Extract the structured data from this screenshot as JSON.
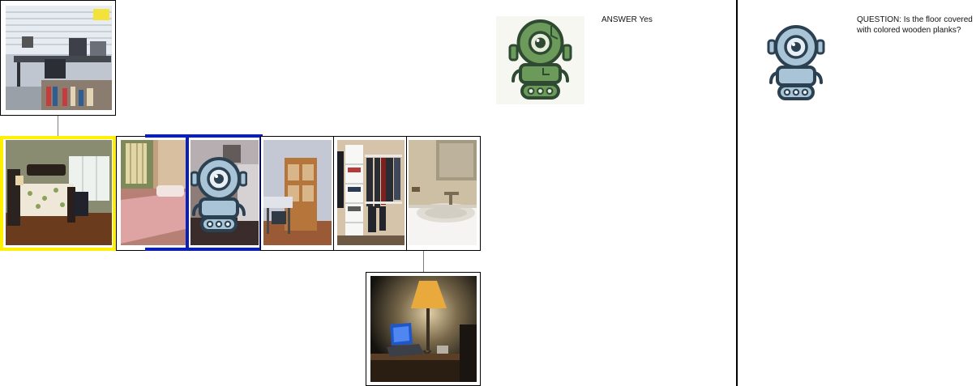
{
  "answer_panel": {
    "prefix": "ANSWER",
    "value": "Yes",
    "avatar_icon": "green-robot-icon",
    "avatar_color": "#6b9a5a"
  },
  "question_panel": {
    "prefix": "QUESTION:",
    "text": "Is the floor covered with colored wooden planks?",
    "avatar_icon": "blue-robot-icon",
    "avatar_color": "#a9c4d6"
  },
  "thumbnails": [
    {
      "name": "office-photo",
      "role": "parent"
    },
    {
      "name": "bedroom-dark-bed-photo",
      "role": "selected"
    },
    {
      "name": "bedroom-pink-bed-photo",
      "role": "sequence"
    },
    {
      "name": "robot-placeholder-photo",
      "role": "current"
    },
    {
      "name": "room-desk-cabinet-photo",
      "role": "sequence"
    },
    {
      "name": "closet-photo",
      "role": "sequence"
    },
    {
      "name": "bathroom-sink-photo",
      "role": "sequence"
    },
    {
      "name": "lamp-laptop-photo",
      "role": "child"
    }
  ],
  "colors": {
    "selected_highlight": "#ffef00",
    "current_highlight": "#0a1fb8"
  }
}
